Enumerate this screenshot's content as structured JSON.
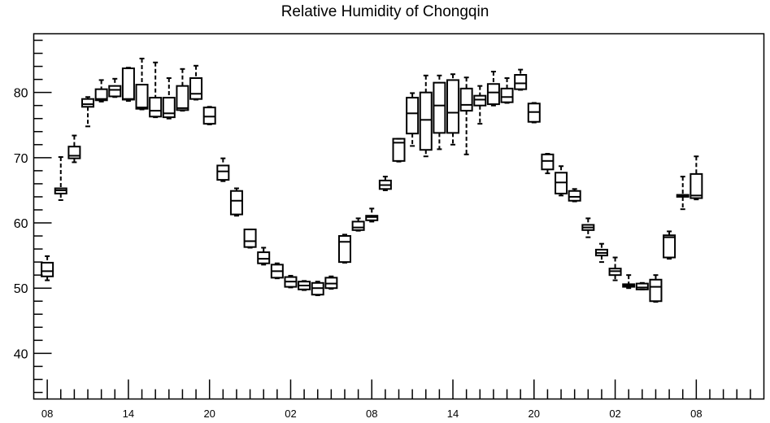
{
  "title": "Relative Humidity of Chongqin",
  "chart_data": {
    "type": "box",
    "title": "Relative Humidity of Chongqin",
    "xlabel": "",
    "ylabel": "",
    "x_range": [
      0,
      54
    ],
    "ylim": [
      33,
      89
    ],
    "x_ticks": [
      {
        "pos": 1,
        "label": "08"
      },
      {
        "pos": 7,
        "label": "14"
      },
      {
        "pos": 13,
        "label": "20"
      },
      {
        "pos": 19,
        "label": "02"
      },
      {
        "pos": 25,
        "label": "08"
      },
      {
        "pos": 31,
        "label": "14"
      },
      {
        "pos": 37,
        "label": "20"
      },
      {
        "pos": 43,
        "label": "02"
      },
      {
        "pos": 49,
        "label": "08"
      }
    ],
    "y_ticks": [
      40,
      50,
      60,
      70,
      80
    ],
    "boxes": [
      {
        "x": 1,
        "min": 51.2,
        "q1": 51.8,
        "median": 52.6,
        "q3": 53.9,
        "max": 54.9
      },
      {
        "x": 2,
        "min": 63.5,
        "q1": 64.5,
        "median": 65.0,
        "q3": 65.3,
        "max": 70.1
      },
      {
        "x": 3,
        "min": 69.3,
        "q1": 69.9,
        "median": 70.3,
        "q3": 71.7,
        "max": 73.4
      },
      {
        "x": 4,
        "min": 74.8,
        "q1": 77.8,
        "median": 78.2,
        "q3": 79.0,
        "max": 79.3
      },
      {
        "x": 5,
        "min": 78.6,
        "q1": 78.8,
        "median": 79.0,
        "q3": 80.5,
        "max": 81.9
      },
      {
        "x": 6,
        "min": 79.3,
        "q1": 79.4,
        "median": 80.4,
        "q3": 81.0,
        "max": 82.1
      },
      {
        "x": 7,
        "min": 78.7,
        "q1": 78.9,
        "median": 79.0,
        "q3": 83.7,
        "max": 83.8
      },
      {
        "x": 8,
        "min": 77.4,
        "q1": 77.5,
        "median": 77.7,
        "q3": 81.2,
        "max": 85.2
      },
      {
        "x": 9,
        "min": 76.2,
        "q1": 76.3,
        "median": 77.2,
        "q3": 79.2,
        "max": 84.6
      },
      {
        "x": 10,
        "min": 76.0,
        "q1": 76.2,
        "median": 76.8,
        "q3": 79.2,
        "max": 82.2
      },
      {
        "x": 11,
        "min": 77.2,
        "q1": 77.3,
        "median": 77.6,
        "q3": 81.0,
        "max": 83.6
      },
      {
        "x": 12,
        "min": 78.9,
        "q1": 79.0,
        "median": 79.8,
        "q3": 82.2,
        "max": 84.1
      },
      {
        "x": 13,
        "min": 75.1,
        "q1": 75.2,
        "median": 76.3,
        "q3": 77.7,
        "max": 77.8
      },
      {
        "x": 14,
        "min": 66.4,
        "q1": 66.6,
        "median": 67.9,
        "q3": 68.8,
        "max": 69.9
      },
      {
        "x": 15,
        "min": 61.1,
        "q1": 61.3,
        "median": 63.4,
        "q3": 64.9,
        "max": 65.3
      },
      {
        "x": 16,
        "min": 56.2,
        "q1": 56.3,
        "median": 57.2,
        "q3": 59.0,
        "max": 59.0
      },
      {
        "x": 17,
        "min": 53.6,
        "q1": 53.8,
        "median": 54.5,
        "q3": 55.5,
        "max": 56.2
      },
      {
        "x": 18,
        "min": 51.5,
        "q1": 51.6,
        "median": 52.6,
        "q3": 53.6,
        "max": 53.8
      },
      {
        "x": 19,
        "min": 50.1,
        "q1": 50.2,
        "median": 51.0,
        "q3": 51.7,
        "max": 51.9
      },
      {
        "x": 20,
        "min": 49.7,
        "q1": 49.8,
        "median": 50.4,
        "q3": 51.0,
        "max": 51.1
      },
      {
        "x": 21,
        "min": 48.9,
        "q1": 49.0,
        "median": 50.0,
        "q3": 50.8,
        "max": 51.0
      },
      {
        "x": 22,
        "min": 49.9,
        "q1": 50.0,
        "median": 50.7,
        "q3": 51.6,
        "max": 51.8
      },
      {
        "x": 23,
        "min": 53.9,
        "q1": 54.0,
        "median": 57.1,
        "q3": 58.0,
        "max": 58.2
      },
      {
        "x": 24,
        "min": 58.8,
        "q1": 58.9,
        "median": 59.3,
        "q3": 60.2,
        "max": 60.7
      },
      {
        "x": 25,
        "min": 60.2,
        "q1": 60.4,
        "median": 60.9,
        "q3": 61.1,
        "max": 62.2
      },
      {
        "x": 26,
        "min": 65.0,
        "q1": 65.2,
        "median": 65.8,
        "q3": 66.5,
        "max": 67.1
      },
      {
        "x": 27,
        "min": 69.4,
        "q1": 69.5,
        "median": 72.3,
        "q3": 72.9,
        "max": 72.9
      },
      {
        "x": 28,
        "min": 71.8,
        "q1": 73.7,
        "median": 76.8,
        "q3": 79.2,
        "max": 79.9
      },
      {
        "x": 29,
        "min": 70.2,
        "q1": 71.2,
        "median": 75.8,
        "q3": 80.0,
        "max": 82.6
      },
      {
        "x": 30,
        "min": 71.3,
        "q1": 73.8,
        "median": 78.0,
        "q3": 81.5,
        "max": 82.6
      },
      {
        "x": 31,
        "min": 72.0,
        "q1": 73.8,
        "median": 76.9,
        "q3": 81.9,
        "max": 82.8
      },
      {
        "x": 32,
        "min": 70.5,
        "q1": 77.2,
        "median": 78.1,
        "q3": 80.6,
        "max": 82.3
      },
      {
        "x": 33,
        "min": 75.2,
        "q1": 78.0,
        "median": 78.9,
        "q3": 79.5,
        "max": 81.0
      },
      {
        "x": 34,
        "min": 78.0,
        "q1": 78.2,
        "median": 80.0,
        "q3": 81.3,
        "max": 83.2
      },
      {
        "x": 35,
        "min": 78.4,
        "q1": 78.5,
        "median": 79.3,
        "q3": 80.6,
        "max": 82.2
      },
      {
        "x": 36,
        "min": 80.4,
        "q1": 80.5,
        "median": 81.4,
        "q3": 82.7,
        "max": 83.5
      },
      {
        "x": 37,
        "min": 75.4,
        "q1": 75.5,
        "median": 77.0,
        "q3": 78.3,
        "max": 78.4
      },
      {
        "x": 38,
        "min": 67.6,
        "q1": 68.2,
        "median": 69.5,
        "q3": 70.5,
        "max": 70.6
      },
      {
        "x": 39,
        "min": 64.2,
        "q1": 64.5,
        "median": 66.2,
        "q3": 67.7,
        "max": 68.7
      },
      {
        "x": 40,
        "min": 63.3,
        "q1": 63.4,
        "median": 64.0,
        "q3": 64.9,
        "max": 65.2
      },
      {
        "x": 41,
        "min": 57.8,
        "q1": 58.9,
        "median": 59.3,
        "q3": 59.7,
        "max": 60.7
      },
      {
        "x": 42,
        "min": 54.0,
        "q1": 55.0,
        "median": 55.4,
        "q3": 55.9,
        "max": 56.8
      },
      {
        "x": 43,
        "min": 51.2,
        "q1": 52.0,
        "median": 52.6,
        "q3": 53.0,
        "max": 54.7
      },
      {
        "x": 44,
        "min": 50.0,
        "q1": 50.2,
        "median": 50.4,
        "q3": 50.6,
        "max": 52.0
      },
      {
        "x": 45,
        "min": 49.8,
        "q1": 49.8,
        "median": 50.1,
        "q3": 50.7,
        "max": 50.8
      },
      {
        "x": 46,
        "min": 47.9,
        "q1": 48.0,
        "median": 50.2,
        "q3": 51.3,
        "max": 52.0
      },
      {
        "x": 47,
        "min": 54.5,
        "q1": 54.7,
        "median": 57.8,
        "q3": 58.1,
        "max": 58.7
      },
      {
        "x": 48,
        "min": 62.1,
        "q1": 64.0,
        "median": 64.1,
        "q3": 64.3,
        "max": 67.1
      },
      {
        "x": 49,
        "min": 63.6,
        "q1": 63.8,
        "median": 64.2,
        "q3": 67.5,
        "max": 70.2
      }
    ]
  }
}
